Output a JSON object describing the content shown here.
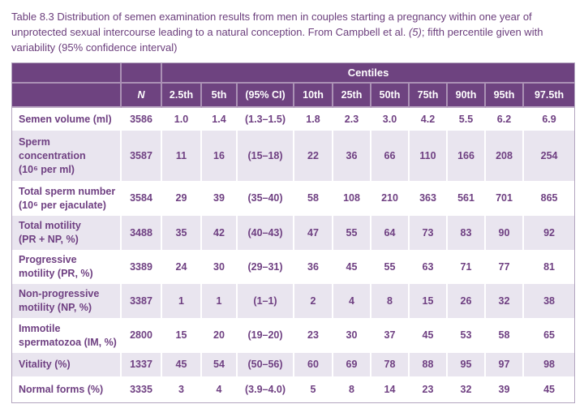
{
  "caption": {
    "part1": "Table 8.3 Distribution of semen examination results from men in couples starting a pregnancy within one year of unprotected sexual intercourse leading to a natural conception. From Campbell et al. ",
    "part2_italic": "(5)",
    "part3": "; fifth percentile given with variability (95% confidence interval)"
  },
  "table": {
    "centiles_label": "Centiles",
    "n_label": "N",
    "centile_columns": [
      "2.5th",
      "5th",
      "(95% CI)",
      "10th",
      "25th",
      "50th",
      "75th",
      "90th",
      "95th",
      "97.5th"
    ],
    "rows": [
      {
        "label": "Semen volume (ml)",
        "n": "3586",
        "values": [
          "1.0",
          "1.4",
          "(1.3–1.5)",
          "1.8",
          "2.3",
          "3.0",
          "4.2",
          "5.5",
          "6.2",
          "6.9"
        ]
      },
      {
        "label": "Sperm\nconcentration\n(10⁶ per ml)",
        "n": "3587",
        "values": [
          "11",
          "16",
          "(15–18)",
          "22",
          "36",
          "66",
          "110",
          "166",
          "208",
          "254"
        ]
      },
      {
        "label": "Total sperm number\n(10⁶ per ejaculate)",
        "n": "3584",
        "values": [
          "29",
          "39",
          "(35–40)",
          "58",
          "108",
          "210",
          "363",
          "561",
          "701",
          "865"
        ]
      },
      {
        "label": "Total motility\n(PR + NP, %)",
        "n": "3488",
        "values": [
          "35",
          "42",
          "(40–43)",
          "47",
          "55",
          "64",
          "73",
          "83",
          "90",
          "92"
        ]
      },
      {
        "label": "Progressive\nmotility (PR, %)",
        "n": "3389",
        "values": [
          "24",
          "30",
          "(29–31)",
          "36",
          "45",
          "55",
          "63",
          "71",
          "77",
          "81"
        ]
      },
      {
        "label": "Non-progressive\nmotility (NP, %)",
        "n": "3387",
        "values": [
          "1",
          "1",
          "(1–1)",
          "2",
          "4",
          "8",
          "15",
          "26",
          "32",
          "38"
        ]
      },
      {
        "label": "Immotile\nspermatozoa (IM, %)",
        "n": "2800",
        "values": [
          "15",
          "20",
          "(19–20)",
          "23",
          "30",
          "37",
          "45",
          "53",
          "58",
          "65"
        ]
      },
      {
        "label": "Vitality (%)",
        "n": "1337",
        "values": [
          "45",
          "54",
          "(50–56)",
          "60",
          "69",
          "78",
          "88",
          "95",
          "97",
          "98"
        ]
      },
      {
        "label": "Normal forms (%)",
        "n": "3335",
        "values": [
          "3",
          "4",
          "(3.9–4.0)",
          "5",
          "8",
          "14",
          "23",
          "32",
          "39",
          "45"
        ]
      }
    ]
  },
  "colors": {
    "header_bg": "#6e4380",
    "header_text": "#ffffff",
    "body_text": "#6f4082",
    "alt_row_bg": "#e9e5ef",
    "table_border": "#b3a5bf",
    "caption_text": "#6b3e7c"
  }
}
